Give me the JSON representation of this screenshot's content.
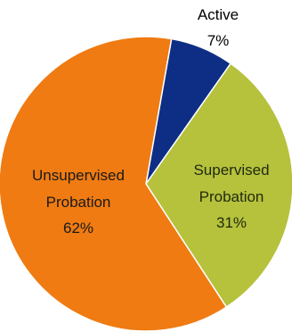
{
  "chart_data": {
    "type": "pie",
    "title": "",
    "start_angle_deg": 10,
    "direction": "clockwise",
    "slices": [
      {
        "label": "Active",
        "value": 7,
        "pct_label": "7%",
        "color": "#0e2e86",
        "label_color": "#000000"
      },
      {
        "label": "Supervised Probation",
        "value": 31,
        "pct_label": "31%",
        "color": "#b6c13c",
        "label_color": "#1f2a10"
      },
      {
        "label": "Unsupervised Probation",
        "value": 62,
        "pct_label": "62%",
        "color": "#ef7b12",
        "label_color": "#1a1a1a"
      }
    ]
  }
}
